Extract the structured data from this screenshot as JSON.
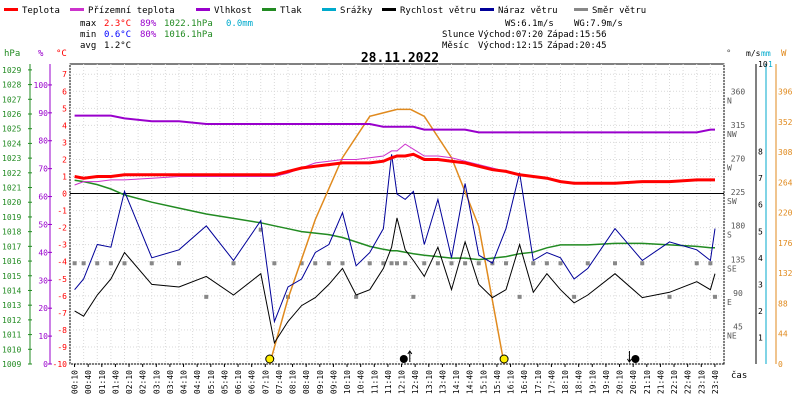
{
  "title": "28.11.2022",
  "legend": [
    {
      "label": "Teplota",
      "color": "#ff0000"
    },
    {
      "label": "Přízemní teplota",
      "color": "#cc33cc"
    },
    {
      "label": "Vlhkost",
      "color": "#9900cc"
    },
    {
      "label": "Tlak",
      "color": "#228b22"
    },
    {
      "label": "Srážky",
      "color": "#00aacc"
    },
    {
      "label": "Rychlost větru",
      "color": "#000000"
    },
    {
      "label": "Náraz větru",
      "color": "#000099"
    },
    {
      "label": "Směr větru",
      "color": "#888888"
    }
  ],
  "stats": {
    "max": {
      "label": "max",
      "temp": "2.3°C",
      "hum": "89%",
      "press": "1022.1hPa",
      "rain": "0.0mm"
    },
    "min": {
      "label": "min",
      "temp": "0.6°C",
      "hum": "80%",
      "press": "1016.1hPa"
    },
    "avg": {
      "label": "avg",
      "temp": "1.2°C"
    }
  },
  "info": {
    "ws": "WS:6.1m/s",
    "wg": "WG:7.9m/s",
    "sun_label": "Slunce",
    "sunrise": "Východ:07:20",
    "sunset": "Západ:15:56",
    "moon_label": "Měsíc",
    "moonrise": "Východ:12:15",
    "moonset": "Západ:20:45"
  },
  "axes": {
    "hpa_unit": "hPa",
    "pct_unit": "%",
    "c_unit": "°C",
    "deg_unit": "°",
    "ms_unit": "m/s",
    "mm_unit": "mm",
    "w_unit": "W",
    "x_title": "čas",
    "hpa_ticks": [
      "1029",
      "1028",
      "1027",
      "1026",
      "1025",
      "1024",
      "1023",
      "1022",
      "1021",
      "1020",
      "1019",
      "1018",
      "1017",
      "1016",
      "1015",
      "1014",
      "1013",
      "1012",
      "1011",
      "1010",
      "1009"
    ],
    "pct_ticks": [
      "100",
      "90",
      "80",
      "70",
      "60",
      "50",
      "40",
      "30",
      "20",
      "10",
      "0"
    ],
    "c_ticks": [
      "7",
      "6",
      "5",
      "4",
      "3",
      "2",
      "1",
      "0",
      "-1",
      "-2",
      "-3",
      "-4",
      "-5",
      "-6",
      "-7",
      "-8",
      "-9",
      "-10"
    ],
    "dir_ticks": [
      {
        "deg": "360",
        "dir": "N"
      },
      {
        "deg": "315",
        "dir": "NW"
      },
      {
        "deg": "270",
        "dir": "W"
      },
      {
        "deg": "225",
        "dir": "SW"
      },
      {
        "deg": "180",
        "dir": "S"
      },
      {
        "deg": "135",
        "dir": "SE"
      },
      {
        "deg": "90",
        "dir": "E"
      },
      {
        "deg": "45",
        "dir": "NE"
      }
    ],
    "ms_ticks": [
      "8",
      "7",
      "6",
      "5",
      "4",
      "3",
      "2",
      "1"
    ],
    "ms_top": "10",
    "mm_top": "1",
    "w_ticks": [
      "396",
      "352",
      "308",
      "264",
      "220",
      "176",
      "132",
      "88",
      "44",
      "0"
    ],
    "x_ticks": [
      "00:10",
      "00:40",
      "01:10",
      "01:40",
      "02:10",
      "02:40",
      "03:10",
      "03:40",
      "04:10",
      "04:40",
      "05:10",
      "05:40",
      "06:10",
      "06:40",
      "07:10",
      "07:40",
      "08:10",
      "08:40",
      "09:10",
      "09:40",
      "10:10",
      "10:40",
      "11:10",
      "11:40",
      "12:10",
      "12:40",
      "13:10",
      "13:40",
      "14:10",
      "14:40",
      "15:10",
      "15:40",
      "16:10",
      "16:40",
      "17:10",
      "17:40",
      "18:10",
      "18:40",
      "19:10",
      "19:40",
      "20:10",
      "20:40",
      "21:10",
      "21:40",
      "22:10",
      "22:40",
      "23:10",
      "23:40"
    ]
  },
  "chart_data": {
    "type": "line",
    "x_hours": [
      0.17,
      0.5,
      1,
      1.5,
      2,
      3,
      4,
      5,
      6,
      7,
      7.5,
      8,
      8.5,
      9,
      9.5,
      10,
      10.5,
      11,
      11.5,
      11.8,
      12,
      12.3,
      12.6,
      13,
      13.5,
      14,
      14.5,
      15,
      15.5,
      16,
      16.5,
      17,
      17.5,
      18,
      18.5,
      19,
      20,
      21,
      22,
      23,
      23.5,
      23.67
    ],
    "series": [
      {
        "name": "Teplota",
        "color": "#ff0000",
        "axis": "C",
        "values": [
          1.0,
          0.9,
          1.0,
          1.0,
          1.1,
          1.1,
          1.1,
          1.1,
          1.1,
          1.1,
          1.1,
          1.3,
          1.5,
          1.6,
          1.7,
          1.8,
          1.8,
          1.8,
          1.9,
          2.1,
          2.2,
          2.2,
          2.3,
          2.0,
          2.0,
          1.9,
          1.8,
          1.6,
          1.4,
          1.3,
          1.1,
          1.0,
          0.9,
          0.7,
          0.6,
          0.6,
          0.6,
          0.7,
          0.7,
          0.8,
          0.8,
          0.8
        ]
      },
      {
        "name": "Přízemní teplota",
        "color": "#cc33cc",
        "axis": "C",
        "values": [
          0.5,
          0.7,
          0.7,
          0.8,
          0.8,
          0.9,
          1.0,
          1.0,
          1.0,
          1.0,
          1.0,
          1.2,
          1.5,
          1.8,
          1.9,
          2.0,
          2.0,
          2.1,
          2.2,
          2.5,
          2.5,
          2.9,
          2.6,
          2.2,
          2.2,
          2.1,
          1.9,
          1.7,
          1.5,
          1.3,
          1.1,
          1.0,
          0.9,
          0.7,
          0.6,
          0.6,
          0.6,
          0.7,
          0.7,
          0.8,
          0.8,
          0.8
        ]
      },
      {
        "name": "Vlhkost",
        "color": "#9900cc",
        "axis": "pct",
        "values": [
          89,
          89,
          89,
          89,
          88,
          87,
          87,
          86,
          86,
          86,
          86,
          86,
          86,
          86,
          86,
          86,
          86,
          86,
          85,
          85,
          85,
          85,
          85,
          84,
          84,
          84,
          84,
          83,
          83,
          83,
          83,
          83,
          83,
          83,
          83,
          83,
          83,
          83,
          83,
          83,
          84,
          84
        ]
      },
      {
        "name": "Tlak",
        "color": "#228b22",
        "axis": "hpa",
        "values": [
          1021.5,
          1021.4,
          1021.2,
          1020.9,
          1020.5,
          1020.0,
          1019.6,
          1019.2,
          1018.9,
          1018.6,
          1018.4,
          1018.2,
          1018.0,
          1017.9,
          1017.8,
          1017.6,
          1017.3,
          1017.0,
          1016.8,
          1016.7,
          1016.7,
          1016.6,
          1016.5,
          1016.4,
          1016.3,
          1016.2,
          1016.2,
          1016.1,
          1016.2,
          1016.3,
          1016.5,
          1016.6,
          1016.9,
          1017.1,
          1017.1,
          1017.1,
          1017.2,
          1017.2,
          1017.1,
          1017.0,
          1016.9,
          1016.9
        ]
      },
      {
        "name": "Rychlost větru",
        "color": "#000000",
        "axis": "ms",
        "values": [
          2.0,
          1.8,
          2.6,
          3.2,
          4.2,
          3.0,
          2.9,
          3.3,
          2.6,
          3.4,
          0.8,
          1.6,
          2.2,
          2.5,
          3.0,
          3.6,
          2.6,
          2.8,
          3.6,
          4.4,
          5.5,
          4.3,
          3.9,
          3.3,
          4.4,
          2.8,
          4.6,
          3.0,
          2.5,
          2.8,
          4.5,
          2.7,
          3.4,
          2.8,
          2.3,
          2.6,
          3.4,
          2.5,
          2.7,
          3.1,
          2.8,
          3.4
        ]
      },
      {
        "name": "Náraz větru",
        "color": "#000099",
        "axis": "ms",
        "values": [
          2.8,
          3.2,
          4.5,
          4.4,
          6.5,
          4.0,
          4.3,
          5.2,
          3.9,
          5.4,
          1.6,
          2.9,
          3.2,
          4.2,
          4.5,
          5.7,
          3.7,
          4.2,
          5.1,
          7.9,
          6.4,
          6.2,
          6.5,
          4.5,
          6.2,
          4.0,
          6.8,
          4.1,
          3.8,
          5.1,
          7.2,
          3.9,
          4.2,
          4.0,
          3.2,
          3.6,
          5.1,
          3.9,
          4.6,
          4.3,
          3.9,
          5.1
        ]
      },
      {
        "name": "Směr větru",
        "color": "#888888",
        "axis": "deg",
        "values": [
          135,
          135,
          135,
          135,
          135,
          135,
          135,
          90,
          135,
          180,
          135,
          90,
          135,
          135,
          135,
          135,
          90,
          135,
          135,
          135,
          135,
          135,
          90,
          135,
          135,
          135,
          135,
          135,
          135,
          135,
          90,
          135,
          135,
          135,
          90,
          135,
          135,
          135,
          90,
          135,
          135,
          90
        ]
      }
    ],
    "solar": {
      "name": "Sluneční záření",
      "color": "#e08a1e",
      "axis": "W",
      "x_hours": [
        7.33,
        8,
        9,
        10,
        11,
        12,
        12.5,
        13,
        14,
        15,
        15.93
      ],
      "values": [
        0,
        95,
        210,
        300,
        360,
        370,
        370,
        360,
        300,
        200,
        0
      ]
    },
    "ylim": {
      "C": [
        -10,
        7
      ],
      "hpa": [
        1009,
        1029.4
      ],
      "pct": [
        0,
        100
      ],
      "deg": [
        0,
        360
      ],
      "ms": [
        0,
        8
      ],
      "W": [
        0,
        396
      ]
    },
    "markers": [
      {
        "type": "sunrise",
        "time": "07:20",
        "x_hour": 7.33
      },
      {
        "type": "moonrise",
        "time": "12:15",
        "x_hour": 12.25
      },
      {
        "type": "sunset",
        "time": "15:56",
        "x_hour": 15.93
      },
      {
        "type": "moonset",
        "time": "20:45",
        "x_hour": 20.75
      }
    ]
  }
}
